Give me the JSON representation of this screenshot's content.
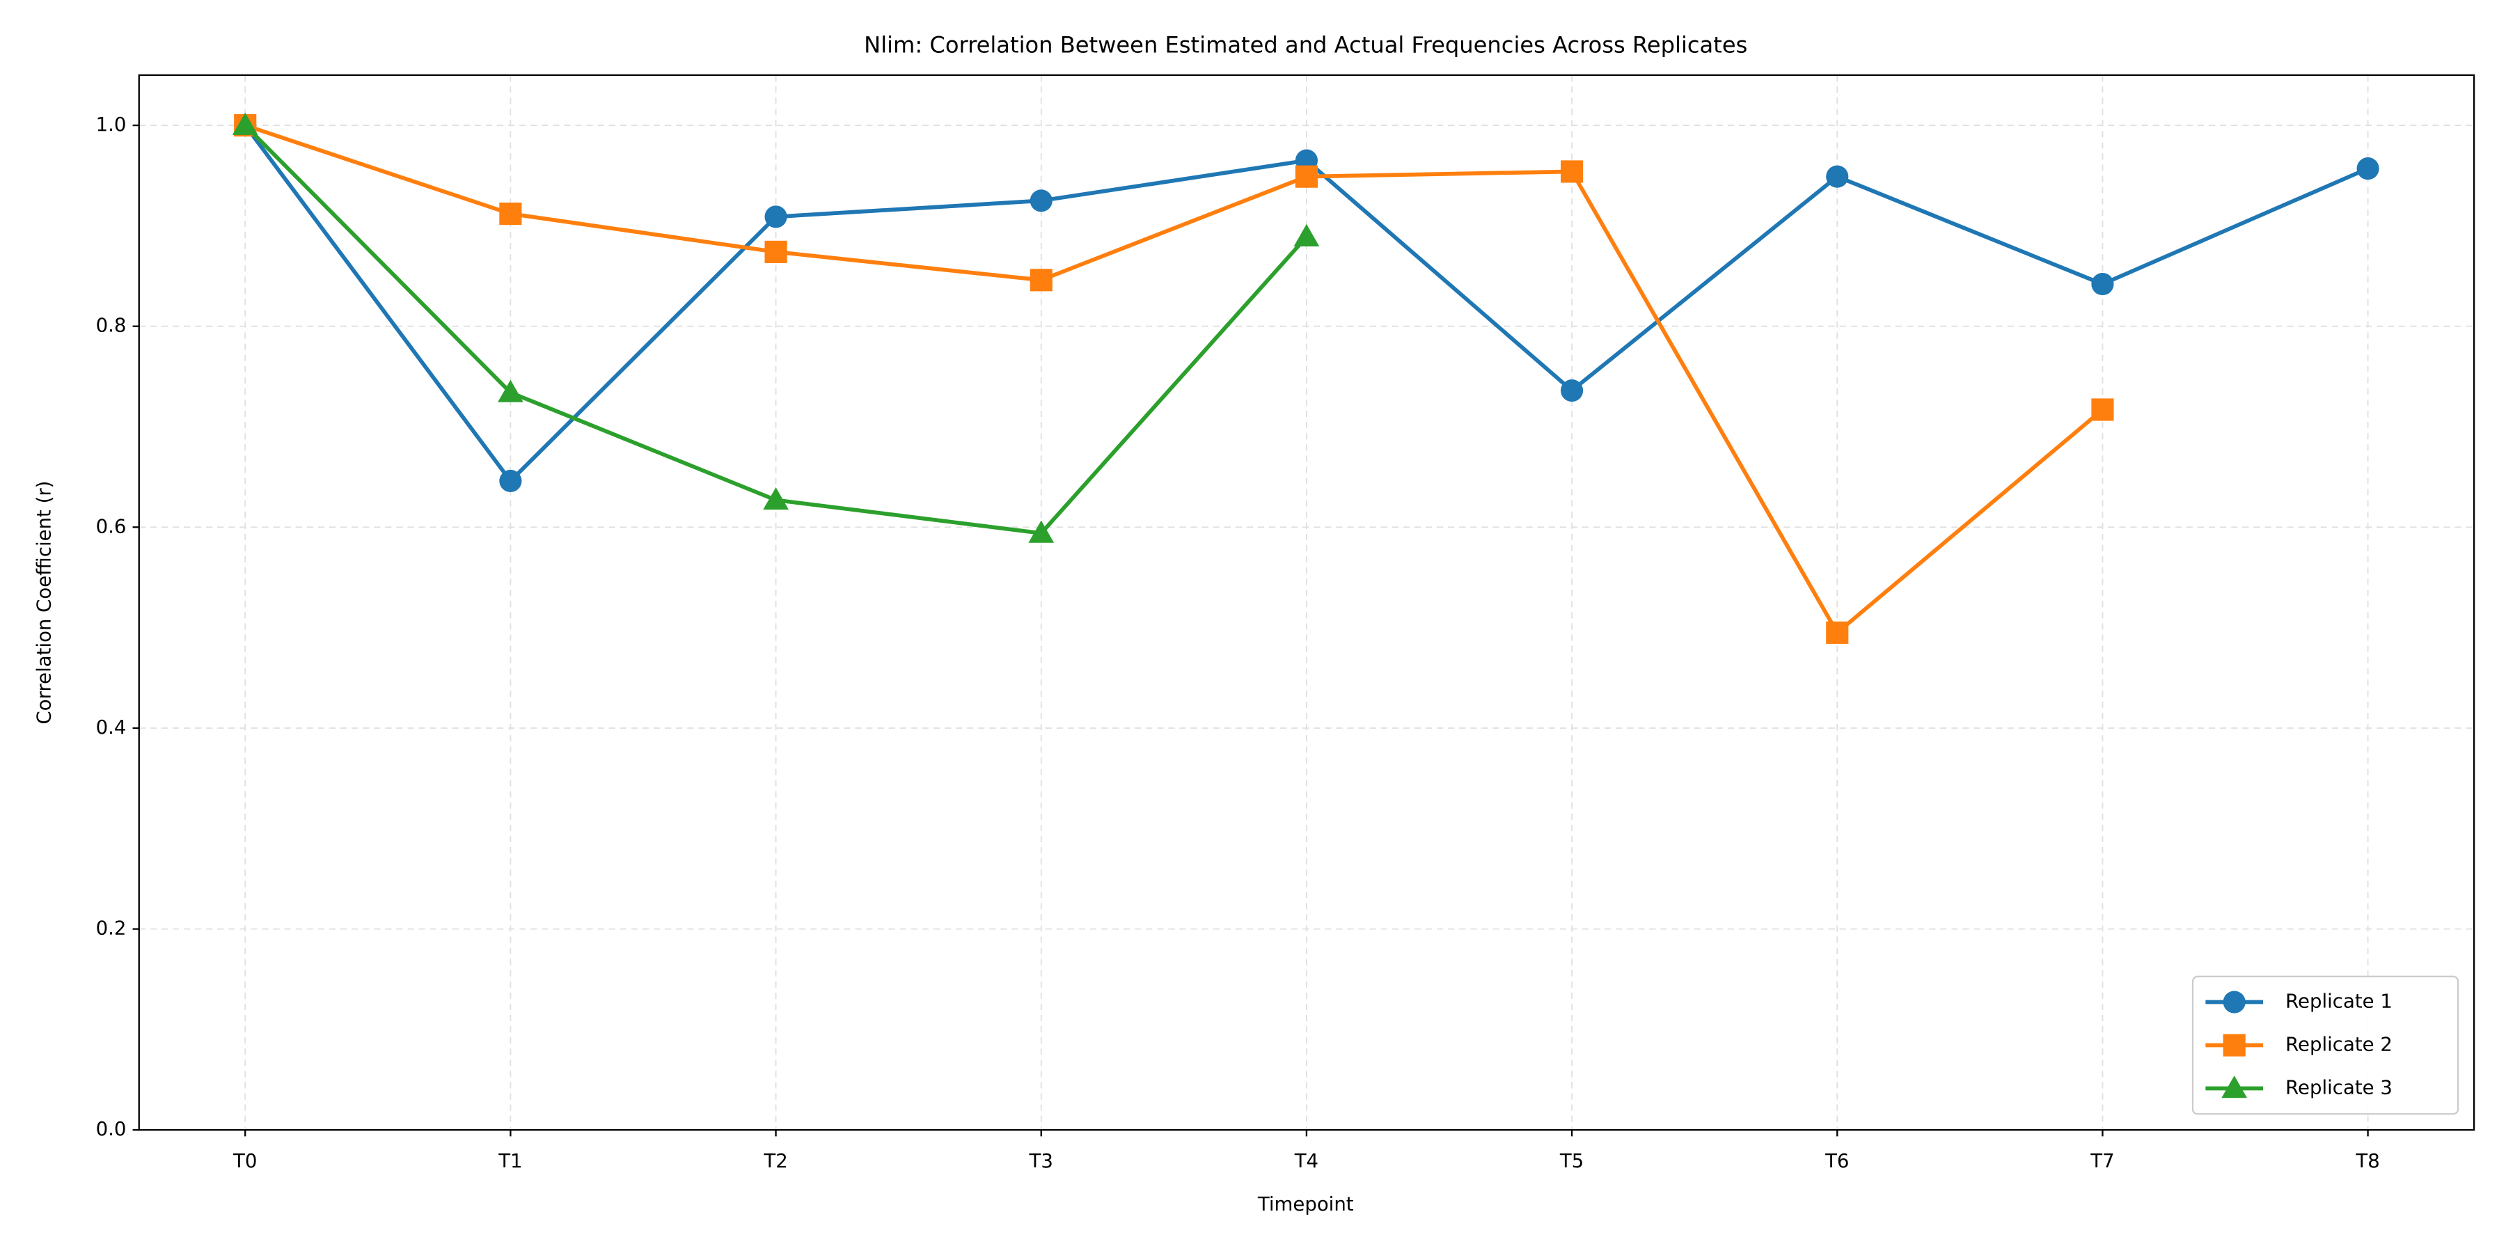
{
  "chart_data": {
    "type": "line",
    "title": "Nlim: Correlation Between Estimated and Actual Frequencies Across Replicates",
    "x_label": "Timepoint",
    "y_label": "Correlation Coefficient (r)",
    "categories": [
      "T0",
      "T1",
      "T2",
      "T3",
      "T4",
      "T5",
      "T6",
      "T7",
      "T8"
    ],
    "series": [
      {
        "name": "Replicate 1",
        "color": "#1f77b4",
        "marker": "circle",
        "values": [
          1.0,
          0.646,
          0.909,
          0.925,
          0.965,
          0.736,
          0.949,
          0.842,
          0.957
        ]
      },
      {
        "name": "Replicate 2",
        "color": "#ff7f0e",
        "marker": "square",
        "values": [
          1.0,
          0.912,
          0.874,
          0.846,
          0.949,
          0.954,
          0.495,
          0.717,
          null
        ]
      },
      {
        "name": "Replicate 3",
        "color": "#2ca02c",
        "marker": "triangle",
        "values": [
          1.0,
          0.734,
          0.627,
          0.594,
          0.889,
          null,
          null,
          null,
          null
        ]
      }
    ],
    "ylim": [
      0,
      1.05
    ],
    "yticks": [
      {
        "value": 0,
        "label": "0.0"
      },
      0.2,
      0.4,
      0.6,
      0.8,
      {
        "value": 1,
        "label": "1.0"
      }
    ],
    "grid": true,
    "legend": "lower right"
  }
}
